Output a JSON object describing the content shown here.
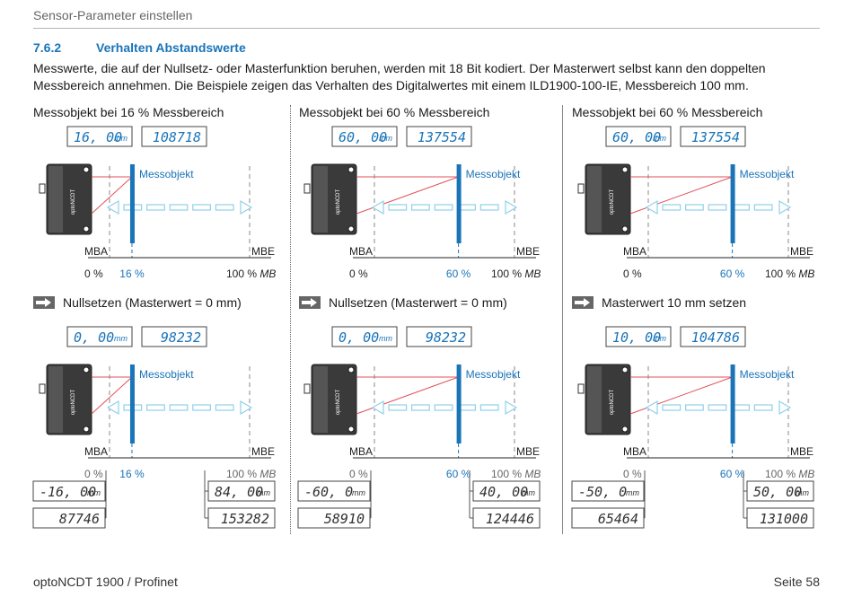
{
  "header": {
    "title": "Sensor-Parameter einstellen"
  },
  "section": {
    "number": "7.6.2",
    "title": "Verhalten Abstandswerte"
  },
  "intro": "Messwerte, die auf der Nullsetz- oder Masterfunktion beruhen, werden mit 18 Bit kodiert. Der Masterwert selbst kann den doppelten Messbereich annehmen. Die Beispiele zeigen das Verhalten des Digitalwertes mit einem ILD1900-100-IE, Messbereich 100 mm.",
  "labels": {
    "messobjekt": "Messobjekt",
    "mba": "MBA",
    "mbe": "MBE",
    "zero_pct": "0 %",
    "hundred_pct": "100 %",
    "mb": "MB",
    "mm": "mm",
    "sensor_brand": "optoNCDT"
  },
  "columns": [
    {
      "title": "Messobjekt bei 16 % Messbereich",
      "pct": "16 %",
      "pos_fraction": 0.16,
      "top_display": {
        "mm": "16.00",
        "digital": "108718"
      },
      "step": "Nullsetzen (Masterwert = 0 mm)",
      "bottom_display": {
        "mm": "0.00",
        "digital": "98232"
      },
      "mba_display": {
        "mm": "-16.00",
        "digital": "87746"
      },
      "mbe_display": {
        "mm": "84.00",
        "digital": "153282"
      }
    },
    {
      "title": "Messobjekt bei 60 % Messbereich",
      "pct": "60 %",
      "pos_fraction": 0.6,
      "top_display": {
        "mm": "60.00",
        "digital": "137554"
      },
      "step": "Nullsetzen (Masterwert = 0 mm)",
      "bottom_display": {
        "mm": "0.00",
        "digital": "98232"
      },
      "mba_display": {
        "mm": "-60.0",
        "digital": "58910"
      },
      "mbe_display": {
        "mm": "40.00",
        "digital": "124446"
      }
    },
    {
      "title": "Messobjekt bei 60 % Messbereich",
      "pct": "60 %",
      "pos_fraction": 0.6,
      "top_display": {
        "mm": "60.00",
        "digital": "137554"
      },
      "step": "Masterwert 10 mm setzen",
      "bottom_display": {
        "mm": "10.00",
        "digital": "104786"
      },
      "mba_display": {
        "mm": "-50.0",
        "digital": "65464"
      },
      "mbe_display": {
        "mm": "50.00",
        "digital": "131000"
      }
    }
  ],
  "footer": {
    "left": "optoNCDT 1900 / Profinet",
    "right": "Seite 58"
  },
  "colors": {
    "accent": "#1a74b8",
    "beam": "#e0525a",
    "arrow": "#8fd0ea",
    "lcd": "#1a74b8",
    "lcd_dark": "#333333"
  }
}
